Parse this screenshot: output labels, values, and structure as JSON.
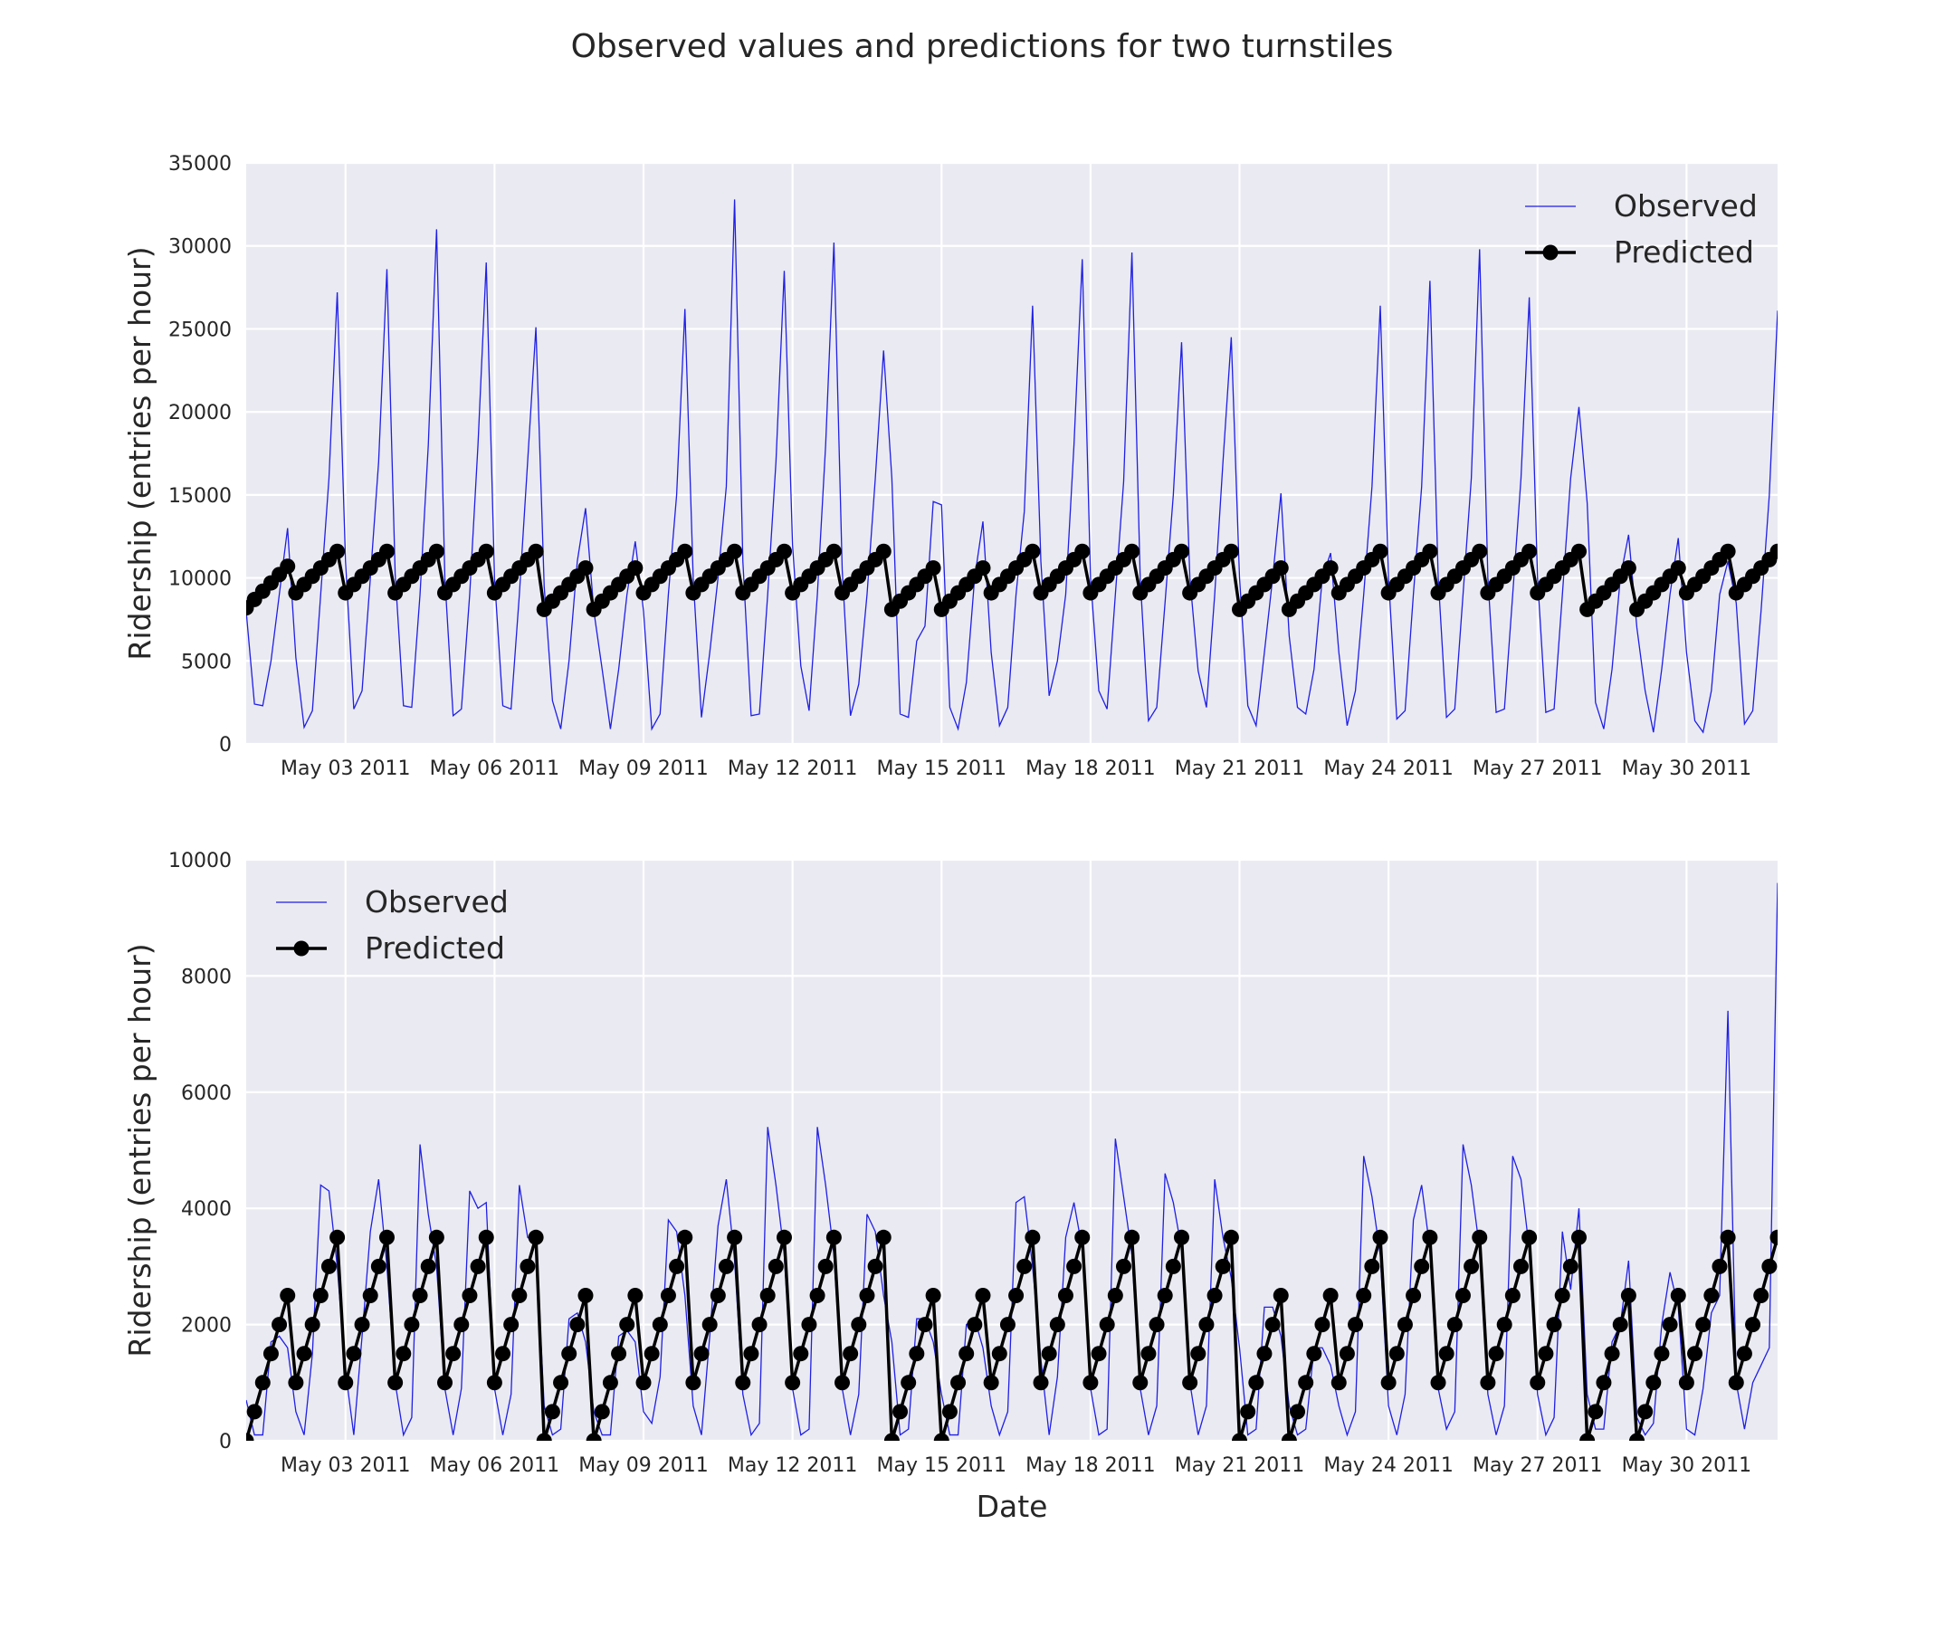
{
  "figure": {
    "title": "Observed values and predictions for two turnstiles"
  },
  "colors": {
    "observed": "#1f1fe6",
    "predicted": "#000000",
    "panel_background": "#eaeaf2",
    "grid": "#ffffff"
  },
  "chart_data": [
    {
      "type": "line",
      "title": "",
      "xlabel": "",
      "ylabel": "Ridership (entries per hour)",
      "x_start": "2011-05-01 00:00",
      "x_end": "2011-05-31 20:00",
      "x_step_hours": 4,
      "xlim": [
        "2011-05-01 00:00",
        "2011-05-31 20:00"
      ],
      "x_ticks": [
        "May 03 2011",
        "May 06 2011",
        "May 09 2011",
        "May 12 2011",
        "May 15 2011",
        "May 18 2011",
        "May 21 2011",
        "May 24 2011",
        "May 27 2011",
        "May 30 2011"
      ],
      "x_tick_dates": [
        "2011-05-03",
        "2011-05-06",
        "2011-05-09",
        "2011-05-12",
        "2011-05-15",
        "2011-05-18",
        "2011-05-21",
        "2011-05-24",
        "2011-05-27",
        "2011-05-30"
      ],
      "ylim": [
        0,
        35000
      ],
      "y_ticks": [
        0,
        5000,
        10000,
        15000,
        20000,
        25000,
        30000,
        35000
      ],
      "grid": true,
      "legend_position": "top-right",
      "series": [
        {
          "name": "Observed",
          "style": "line",
          "values": [
            8000,
            2400,
            2300,
            5000,
            9000,
            13000,
            5200,
            1000,
            2000,
            9000,
            16000,
            27200,
            11000,
            2100,
            3200,
            10000,
            17000,
            28600,
            10200,
            2300,
            2200,
            9000,
            18000,
            31000,
            10000,
            1700,
            2100,
            9000,
            18000,
            29000,
            10000,
            2300,
            2100,
            9000,
            17000,
            25100,
            9500,
            2600,
            900,
            5000,
            11000,
            14200,
            8000,
            4500,
            900,
            4500,
            9000,
            12200,
            8000,
            900,
            1800,
            9000,
            15000,
            26200,
            10000,
            1600,
            5500,
            10000,
            15500,
            32800,
            11000,
            1700,
            1800,
            9000,
            17000,
            28500,
            12000,
            4700,
            2000,
            9000,
            18000,
            30200,
            10500,
            1700,
            3600,
            9000,
            16000,
            23700,
            16000,
            1800,
            1600,
            6200,
            7100,
            14600,
            14400,
            2200,
            900,
            3700,
            10000,
            13400,
            5500,
            1100,
            2200,
            9000,
            14000,
            26400,
            11000,
            2900,
            5000,
            9000,
            18000,
            29200,
            10000,
            3200,
            2100,
            9000,
            15800,
            29600,
            10000,
            1400,
            2200,
            8500,
            15000,
            24200,
            10000,
            4400,
            2200,
            9000,
            17000,
            24500,
            10000,
            2300,
            1100,
            5500,
            10000,
            15100,
            6500,
            2200,
            1800,
            4500,
            10000,
            11500,
            5500,
            1100,
            3200,
            9000,
            15500,
            26400,
            10000,
            1500,
            2000,
            9000,
            15500,
            27900,
            10000,
            1600,
            2100,
            9000,
            16000,
            29800,
            10000,
            1900,
            2100,
            9000,
            16000,
            26900,
            10000,
            1900,
            2100,
            9000,
            16000,
            20300,
            14500,
            2500,
            900,
            4500,
            10000,
            12600,
            7000,
            3200,
            700,
            4500,
            9000,
            12400,
            5500,
            1400,
            700,
            3200,
            9000,
            11000,
            8500,
            1200,
            2000,
            8000,
            15000,
            26100
          ]
        },
        {
          "name": "Predicted",
          "style": "line-with-markers",
          "values": [
            8200,
            8700,
            9200,
            9700,
            10200,
            10700,
            9100,
            9600,
            10100,
            10600,
            11100,
            11600,
            9100,
            9600,
            10100,
            10600,
            11100,
            11600,
            9100,
            9600,
            10100,
            10600,
            11100,
            11600,
            9100,
            9600,
            10100,
            10600,
            11100,
            11600,
            9100,
            9600,
            10100,
            10600,
            11100,
            11600,
            8100,
            8600,
            9100,
            9600,
            10100,
            10600,
            8100,
            8600,
            9100,
            9600,
            10100,
            10600,
            9100,
            9600,
            10100,
            10600,
            11100,
            11600,
            9100,
            9600,
            10100,
            10600,
            11100,
            11600,
            9100,
            9600,
            10100,
            10600,
            11100,
            11600,
            9100,
            9600,
            10100,
            10600,
            11100,
            11600,
            9100,
            9600,
            10100,
            10600,
            11100,
            11600,
            8100,
            8600,
            9100,
            9600,
            10100,
            10600,
            8100,
            8600,
            9100,
            9600,
            10100,
            10600,
            9100,
            9600,
            10100,
            10600,
            11100,
            11600,
            9100,
            9600,
            10100,
            10600,
            11100,
            11600,
            9100,
            9600,
            10100,
            10600,
            11100,
            11600,
            9100,
            9600,
            10100,
            10600,
            11100,
            11600,
            9100,
            9600,
            10100,
            10600,
            11100,
            11600,
            8100,
            8600,
            9100,
            9600,
            10100,
            10600,
            8100,
            8600,
            9100,
            9600,
            10100,
            10600,
            9100,
            9600,
            10100,
            10600,
            11100,
            11600,
            9100,
            9600,
            10100,
            10600,
            11100,
            11600,
            9100,
            9600,
            10100,
            10600,
            11100,
            11600,
            9100,
            9600,
            10100,
            10600,
            11100,
            11600,
            9100,
            9600,
            10100,
            10600,
            11100,
            11600,
            8100,
            8600,
            9100,
            9600,
            10100,
            10600,
            8100,
            8600,
            9100,
            9600,
            10100,
            10600,
            9100,
            9600,
            10100,
            10600,
            11100,
            11600,
            9100,
            9600,
            10100,
            10600,
            11100,
            11600
          ]
        }
      ]
    },
    {
      "type": "line",
      "title": "",
      "xlabel": "Date",
      "ylabel": "Ridership (entries per hour)",
      "x_start": "2011-05-01 00:00",
      "x_end": "2011-05-31 20:00",
      "x_step_hours": 4,
      "xlim": [
        "2011-05-01 00:00",
        "2011-05-31 20:00"
      ],
      "x_ticks": [
        "May 03 2011",
        "May 06 2011",
        "May 09 2011",
        "May 12 2011",
        "May 15 2011",
        "May 18 2011",
        "May 21 2011",
        "May 24 2011",
        "May 27 2011",
        "May 30 2011"
      ],
      "x_tick_dates": [
        "2011-05-03",
        "2011-05-06",
        "2011-05-09",
        "2011-05-12",
        "2011-05-15",
        "2011-05-18",
        "2011-05-21",
        "2011-05-24",
        "2011-05-27",
        "2011-05-30"
      ],
      "ylim": [
        0,
        10000
      ],
      "y_ticks": [
        0,
        2000,
        4000,
        6000,
        8000,
        10000
      ],
      "grid": true,
      "legend_position": "top-left",
      "series": [
        {
          "name": "Observed",
          "style": "line",
          "values": [
            700,
            100,
            100,
            1700,
            1800,
            1600,
            500,
            100,
            1500,
            4400,
            4300,
            3000,
            1200,
            100,
            1800,
            3600,
            4500,
            3000,
            1000,
            100,
            400,
            5100,
            3900,
            3000,
            900,
            100,
            900,
            4300,
            4000,
            4100,
            900,
            100,
            800,
            4400,
            3500,
            3400,
            600,
            100,
            200,
            2100,
            2200,
            1700,
            500,
            100,
            100,
            1800,
            1900,
            1700,
            500,
            300,
            1100,
            3800,
            3600,
            2500,
            600,
            100,
            1800,
            3700,
            4500,
            3100,
            800,
            100,
            300,
            5400,
            4400,
            3200,
            900,
            100,
            200,
            5400,
            4400,
            3200,
            900,
            100,
            800,
            3900,
            3600,
            2500,
            1700,
            100,
            200,
            2100,
            2100,
            1700,
            800,
            100,
            100,
            2000,
            2100,
            1600,
            600,
            100,
            500,
            4100,
            4200,
            3000,
            1400,
            100,
            1100,
            3500,
            4100,
            3300,
            900,
            100,
            200,
            5200,
            4200,
            3200,
            900,
            100,
            600,
            4600,
            4100,
            3300,
            1000,
            100,
            600,
            4500,
            3500,
            2800,
            1600,
            100,
            200,
            2300,
            2300,
            1800,
            600,
            100,
            200,
            1600,
            1600,
            1300,
            600,
            100,
            500,
            4900,
            4200,
            3200,
            600,
            100,
            800,
            3800,
            4400,
            3300,
            900,
            200,
            500,
            5100,
            4400,
            3300,
            800,
            100,
            600,
            4900,
            4500,
            3300,
            800,
            100,
            400,
            3600,
            2600,
            4000,
            800,
            200,
            200,
            1700,
            2000,
            3100,
            400,
            100,
            300,
            2000,
            2900,
            2300,
            200,
            100,
            900,
            2200,
            2500,
            7400,
            1000,
            200,
            1000,
            1300,
            1600,
            9600
          ]
        },
        {
          "name": "Predicted",
          "style": "line-with-markers",
          "values": [
            0,
            500,
            1000,
            1500,
            2000,
            2500,
            1000,
            1500,
            2000,
            2500,
            3000,
            3500,
            1000,
            1500,
            2000,
            2500,
            3000,
            3500,
            1000,
            1500,
            2000,
            2500,
            3000,
            3500,
            1000,
            1500,
            2000,
            2500,
            3000,
            3500,
            1000,
            1500,
            2000,
            2500,
            3000,
            3500,
            0,
            500,
            1000,
            1500,
            2000,
            2500,
            0,
            500,
            1000,
            1500,
            2000,
            2500,
            1000,
            1500,
            2000,
            2500,
            3000,
            3500,
            1000,
            1500,
            2000,
            2500,
            3000,
            3500,
            1000,
            1500,
            2000,
            2500,
            3000,
            3500,
            1000,
            1500,
            2000,
            2500,
            3000,
            3500,
            1000,
            1500,
            2000,
            2500,
            3000,
            3500,
            0,
            500,
            1000,
            1500,
            2000,
            2500,
            0,
            500,
            1000,
            1500,
            2000,
            2500,
            1000,
            1500,
            2000,
            2500,
            3000,
            3500,
            1000,
            1500,
            2000,
            2500,
            3000,
            3500,
            1000,
            1500,
            2000,
            2500,
            3000,
            3500,
            1000,
            1500,
            2000,
            2500,
            3000,
            3500,
            1000,
            1500,
            2000,
            2500,
            3000,
            3500,
            0,
            500,
            1000,
            1500,
            2000,
            2500,
            0,
            500,
            1000,
            1500,
            2000,
            2500,
            1000,
            1500,
            2000,
            2500,
            3000,
            3500,
            1000,
            1500,
            2000,
            2500,
            3000,
            3500,
            1000,
            1500,
            2000,
            2500,
            3000,
            3500,
            1000,
            1500,
            2000,
            2500,
            3000,
            3500,
            1000,
            1500,
            2000,
            2500,
            3000,
            3500,
            0,
            500,
            1000,
            1500,
            2000,
            2500,
            0,
            500,
            1000,
            1500,
            2000,
            2500,
            1000,
            1500,
            2000,
            2500,
            3000,
            3500,
            1000,
            1500,
            2000,
            2500,
            3000,
            3500
          ]
        }
      ]
    }
  ]
}
